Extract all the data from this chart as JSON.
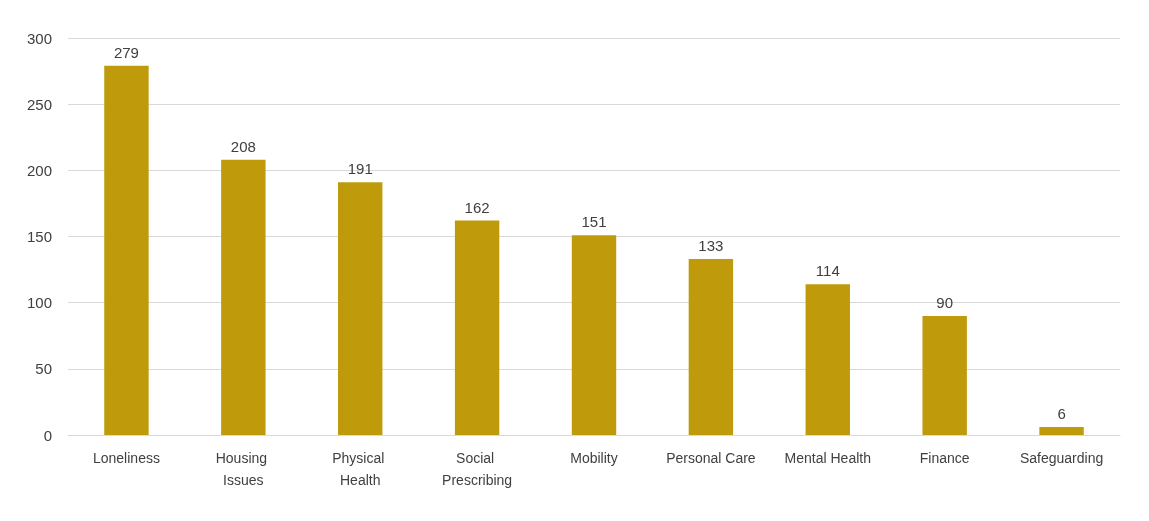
{
  "chart_data": {
    "type": "bar",
    "categories": [
      "Loneliness",
      "Housing Issues",
      "Physical Health",
      "Social Prescribing",
      "Mobility",
      "Personal Care",
      "Mental Health",
      "Finance",
      "Safeguarding"
    ],
    "values": [
      279,
      208,
      191,
      162,
      151,
      133,
      114,
      90,
      6
    ],
    "color": "#bf9b0c",
    "ylim": [
      0,
      300
    ],
    "yticks": [
      0,
      50,
      100,
      150,
      200,
      250,
      300
    ],
    "grid": "y",
    "data_labels": true
  }
}
